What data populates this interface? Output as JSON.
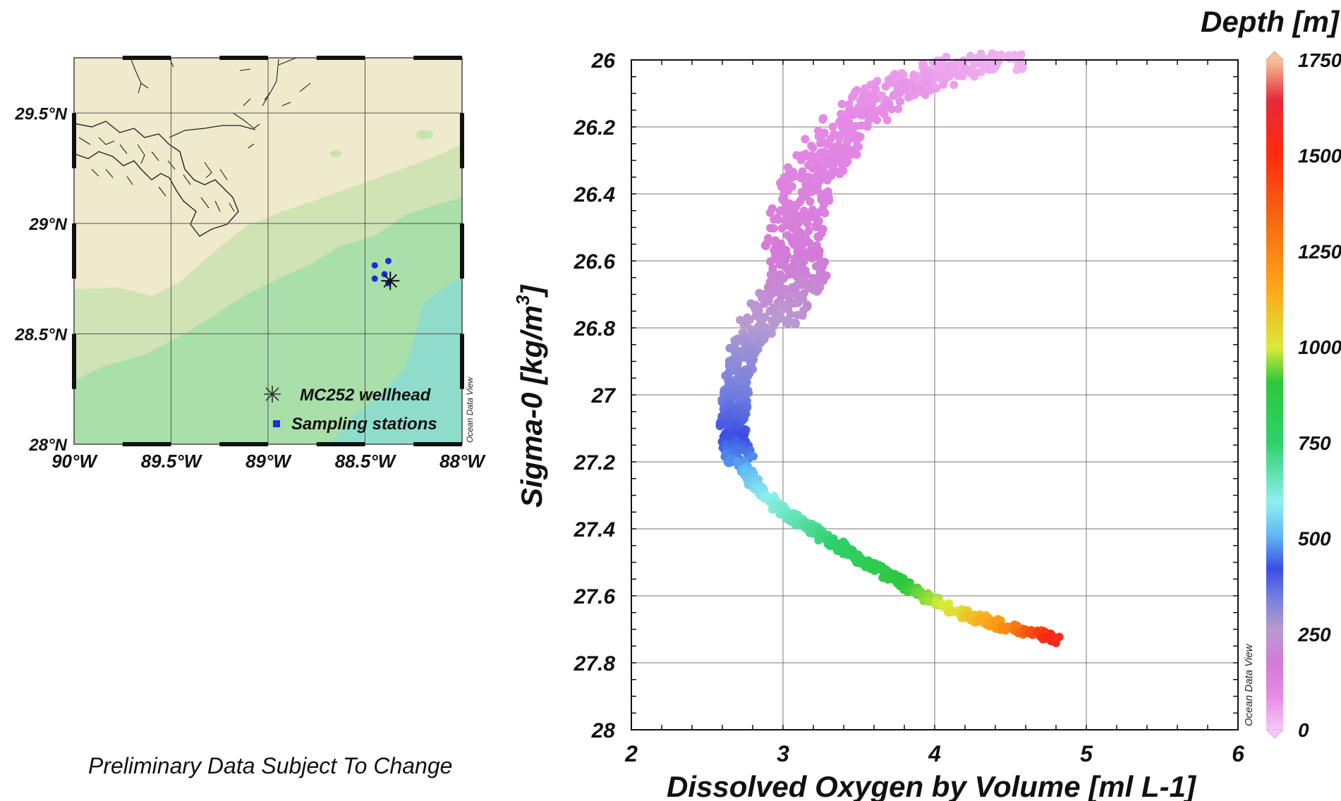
{
  "map": {
    "lat_labels": [
      "29.5°N",
      "29°N",
      "28.5°N",
      "28°N"
    ],
    "lon_labels": [
      "90°W",
      "89.5°W",
      "89°W",
      "88.5°W",
      "88°W"
    ],
    "legend": {
      "wellhead": "MC252 wellhead",
      "stations": "Sampling stations"
    },
    "watermark": "Ocean Data View",
    "lon_range": [
      -90,
      -88
    ],
    "lat_range": [
      28,
      29.75
    ],
    "wellhead": {
      "lon": -88.37,
      "lat": 28.74
    },
    "stations": [
      {
        "lon": -88.45,
        "lat": 28.81
      },
      {
        "lon": -88.38,
        "lat": 28.83
      },
      {
        "lon": -88.4,
        "lat": 28.77
      },
      {
        "lon": -88.45,
        "lat": 28.75
      },
      {
        "lon": -88.38,
        "lat": 28.73
      }
    ],
    "colors": {
      "land": "#efeacb",
      "shelf": "#cfe3b4",
      "slope": "#a9dfa8",
      "deep": "#8fdccb"
    }
  },
  "chart_data": {
    "type": "scatter",
    "xlabel": "Dissolved Oxygen by Volume [ml L-1]",
    "ylabel_main": "Sigma-0 [kg/m",
    "ylabel_sup": "3",
    "ylabel_end": "]",
    "xlim": [
      2,
      6
    ],
    "ylim": [
      28,
      26
    ],
    "xticks": [
      "2",
      "3",
      "4",
      "5",
      "6"
    ],
    "yticks": [
      "26",
      "26.2",
      "26.4",
      "26.6",
      "26.8",
      "27",
      "27.2",
      "27.4",
      "27.6",
      "27.8",
      "28"
    ],
    "grid": true,
    "colorbar": {
      "title": "Depth [m]",
      "ticks": [
        "0",
        "250",
        "500",
        "750",
        "1000",
        "1250",
        "1500",
        "1750"
      ],
      "range": [
        0,
        1750
      ]
    },
    "watermark": "Ocean Data View",
    "profile": [
      {
        "o2": 4.5,
        "sigma": 26.0,
        "depth": 30
      },
      {
        "o2": 4.15,
        "sigma": 26.02,
        "depth": 45
      },
      {
        "o2": 3.9,
        "sigma": 26.06,
        "depth": 60
      },
      {
        "o2": 3.7,
        "sigma": 26.1,
        "depth": 75
      },
      {
        "o2": 3.45,
        "sigma": 26.18,
        "depth": 90
      },
      {
        "o2": 3.3,
        "sigma": 26.26,
        "depth": 105
      },
      {
        "o2": 3.2,
        "sigma": 26.34,
        "depth": 120
      },
      {
        "o2": 3.12,
        "sigma": 26.44,
        "depth": 140
      },
      {
        "o2": 3.05,
        "sigma": 26.54,
        "depth": 160
      },
      {
        "o2": 3.12,
        "sigma": 26.62,
        "depth": 185
      },
      {
        "o2": 3.05,
        "sigma": 26.7,
        "depth": 215
      },
      {
        "o2": 2.9,
        "sigma": 26.78,
        "depth": 250
      },
      {
        "o2": 2.75,
        "sigma": 26.85,
        "depth": 285
      },
      {
        "o2": 2.7,
        "sigma": 26.94,
        "depth": 320
      },
      {
        "o2": 2.68,
        "sigma": 27.02,
        "depth": 355
      },
      {
        "o2": 2.67,
        "sigma": 27.1,
        "depth": 400
      },
      {
        "o2": 2.7,
        "sigma": 27.18,
        "depth": 460
      },
      {
        "o2": 2.8,
        "sigma": 27.26,
        "depth": 540
      },
      {
        "o2": 2.98,
        "sigma": 27.34,
        "depth": 630
      },
      {
        "o2": 3.25,
        "sigma": 27.42,
        "depth": 720
      },
      {
        "o2": 3.55,
        "sigma": 27.5,
        "depth": 820
      },
      {
        "o2": 3.85,
        "sigma": 27.58,
        "depth": 920
      },
      {
        "o2": 4.15,
        "sigma": 27.65,
        "depth": 1030
      },
      {
        "o2": 4.45,
        "sigma": 27.69,
        "depth": 1200
      },
      {
        "o2": 4.8,
        "sigma": 27.73,
        "depth": 1550
      }
    ]
  },
  "footnote": "Preliminary Data Subject  To Change"
}
